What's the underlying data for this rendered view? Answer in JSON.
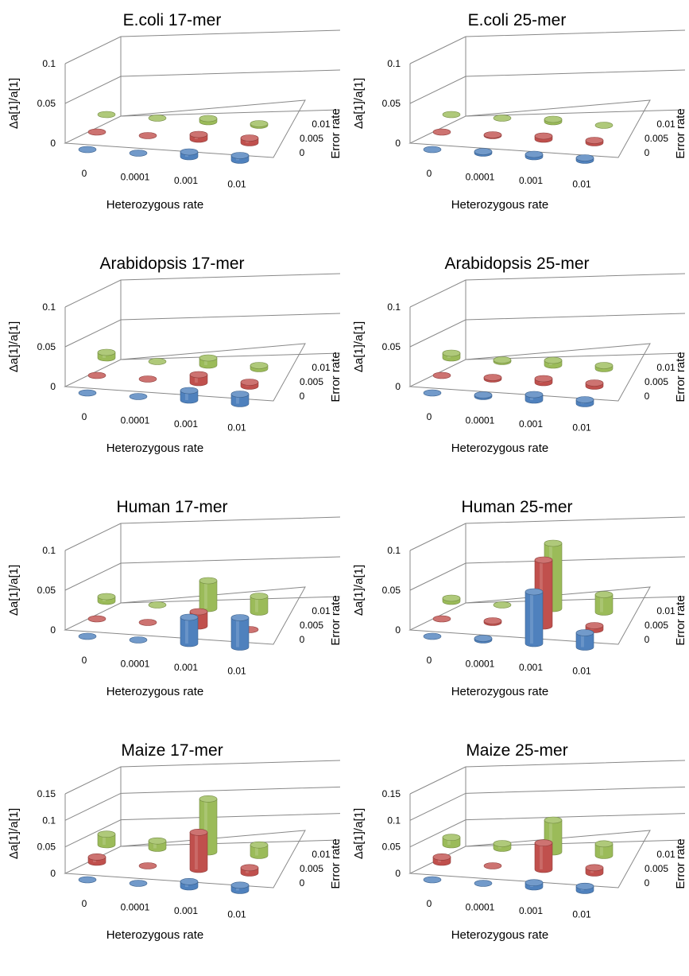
{
  "chart_data": [
    {
      "type": "bar3d",
      "title": "E.coli 17-mer",
      "xlabel": "Heterozygous rate",
      "ylabel": "Δa[1]/a[1]",
      "zlabel": "Error rate",
      "categories": [
        "0",
        "0.0001",
        "0.001",
        "0.01"
      ],
      "depth_categories": [
        "0",
        "0.005",
        "0.01"
      ],
      "y_ticks": [
        "0",
        "0.05",
        "0.1"
      ],
      "ylim": [
        0,
        0.1
      ],
      "series": [
        {
          "depth": "0",
          "color": "#4f81bd",
          "values": [
            0.0,
            0.0,
            0.006,
            0.006
          ]
        },
        {
          "depth": "0.005",
          "color": "#c0504d",
          "values": [
            0.0,
            0.0,
            0.006,
            0.006
          ]
        },
        {
          "depth": "0.01",
          "color": "#9bbb59",
          "values": [
            0.0,
            0.0,
            0.004,
            0.002
          ]
        }
      ]
    },
    {
      "type": "bar3d",
      "title": "E.coli 25-mer",
      "xlabel": "Heterozygous rate",
      "ylabel": "Δa[1]/a[1]",
      "zlabel": "Error rate",
      "categories": [
        "0",
        "0.0001",
        "0.001",
        "0.01"
      ],
      "depth_categories": [
        "0",
        "0.005",
        "0.01"
      ],
      "y_ticks": [
        "0",
        "0.05",
        "0.1"
      ],
      "ylim": [
        0,
        0.1
      ],
      "series": [
        {
          "depth": "0",
          "color": "#4f81bd",
          "values": [
            0.0,
            0.002,
            0.003,
            0.003
          ]
        },
        {
          "depth": "0.005",
          "color": "#c0504d",
          "values": [
            0.0,
            0.001,
            0.004,
            0.003
          ]
        },
        {
          "depth": "0.01",
          "color": "#9bbb59",
          "values": [
            0.0,
            0.0,
            0.003,
            0.0
          ]
        }
      ]
    },
    {
      "type": "bar3d",
      "title": "Arabidopsis 17-mer",
      "xlabel": "Heterozygous rate",
      "ylabel": "Δa[1]/a[1]",
      "zlabel": "Error rate",
      "categories": [
        "0",
        "0.0001",
        "0.001",
        "0.01"
      ],
      "depth_categories": [
        "0",
        "0.005",
        "0.01"
      ],
      "y_ticks": [
        "0",
        "0.05",
        "0.1"
      ],
      "ylim": [
        0,
        0.1
      ],
      "series": [
        {
          "depth": "0",
          "color": "#4f81bd",
          "values": [
            0.0,
            0.0,
            0.012,
            0.012
          ]
        },
        {
          "depth": "0.005",
          "color": "#c0504d",
          "values": [
            0.0,
            0.0,
            0.01,
            0.005
          ]
        },
        {
          "depth": "0.01",
          "color": "#9bbb59",
          "values": [
            0.007,
            0.0,
            0.009,
            0.004
          ]
        }
      ]
    },
    {
      "type": "bar3d",
      "title": "Arabidopsis 25-mer",
      "xlabel": "Heterozygous rate",
      "ylabel": "Δa[1]/a[1]",
      "zlabel": "Error rate",
      "categories": [
        "0",
        "0.0001",
        "0.001",
        "0.01"
      ],
      "depth_categories": [
        "0",
        "0.005",
        "0.01"
      ],
      "y_ticks": [
        "0",
        "0.05",
        "0.1"
      ],
      "ylim": [
        0,
        0.1
      ],
      "series": [
        {
          "depth": "0",
          "color": "#4f81bd",
          "values": [
            0.0,
            0.002,
            0.007,
            0.005
          ]
        },
        {
          "depth": "0.005",
          "color": "#c0504d",
          "values": [
            0.0,
            0.002,
            0.005,
            0.004
          ]
        },
        {
          "depth": "0.01",
          "color": "#9bbb59",
          "values": [
            0.006,
            0.002,
            0.006,
            0.004
          ]
        }
      ]
    },
    {
      "type": "bar3d",
      "title": "Human 17-mer",
      "xlabel": "Heterozygous rate",
      "ylabel": "Δa[1]/a[1]",
      "zlabel": "Error rate",
      "categories": [
        "0",
        "0.0001",
        "0.001",
        "0.01"
      ],
      "depth_categories": [
        "0",
        "0.005",
        "0.01"
      ],
      "y_ticks": [
        "0",
        "0.05",
        "0.1"
      ],
      "ylim": [
        0,
        0.1
      ],
      "series": [
        {
          "depth": "0",
          "color": "#4f81bd",
          "values": [
            0.0,
            0.0,
            0.033,
            0.037
          ]
        },
        {
          "depth": "0.005",
          "color": "#c0504d",
          "values": [
            0.0,
            0.0,
            0.018,
            0.0
          ]
        },
        {
          "depth": "0.01",
          "color": "#9bbb59",
          "values": [
            0.006,
            0.0,
            0.035,
            0.02
          ]
        }
      ]
    },
    {
      "type": "bar3d",
      "title": "Human 25-mer",
      "xlabel": "Heterozygous rate",
      "ylabel": "Δa[1]/a[1]",
      "zlabel": "Error rate",
      "categories": [
        "0",
        "0.0001",
        "0.001",
        "0.01"
      ],
      "depth_categories": [
        "0",
        "0.005",
        "0.01"
      ],
      "y_ticks": [
        "0",
        "0.05",
        "0.1"
      ],
      "ylim": [
        0,
        0.1
      ],
      "series": [
        {
          "depth": "0",
          "color": "#4f81bd",
          "values": [
            0.0,
            0.002,
            0.065,
            0.018
          ]
        },
        {
          "depth": "0.005",
          "color": "#c0504d",
          "values": [
            0.0,
            0.002,
            0.083,
            0.005
          ]
        },
        {
          "depth": "0.01",
          "color": "#9bbb59",
          "values": [
            0.004,
            0.0,
            0.082,
            0.022
          ]
        }
      ]
    },
    {
      "type": "bar3d",
      "title": "Maize 17-mer",
      "xlabel": "Heterozygous rate",
      "ylabel": "Δa[1]/a[1]",
      "zlabel": "Error rate",
      "categories": [
        "0",
        "0.0001",
        "0.001",
        "0.01"
      ],
      "depth_categories": [
        "0",
        "0.005",
        "0.01"
      ],
      "y_ticks": [
        "0",
        "0.05",
        "0.1",
        "0.15"
      ],
      "ylim": [
        0,
        0.15
      ],
      "series": [
        {
          "depth": "0",
          "color": "#4f81bd",
          "values": [
            0.0,
            0.0,
            0.01,
            0.01
          ]
        },
        {
          "depth": "0.005",
          "color": "#c0504d",
          "values": [
            0.01,
            0.0,
            0.07,
            0.01
          ]
        },
        {
          "depth": "0.01",
          "color": "#9bbb59",
          "values": [
            0.02,
            0.014,
            0.1,
            0.02
          ]
        }
      ]
    },
    {
      "type": "bar3d",
      "title": "Maize 25-mer",
      "xlabel": "Heterozygous rate",
      "ylabel": "Δa[1]/a[1]",
      "zlabel": "Error rate",
      "categories": [
        "0",
        "0.0001",
        "0.001",
        "0.01"
      ],
      "depth_categories": [
        "0",
        "0.005",
        "0.01"
      ],
      "y_ticks": [
        "0",
        "0.05",
        "0.1",
        "0.15"
      ],
      "ylim": [
        0,
        0.15
      ],
      "series": [
        {
          "depth": "0",
          "color": "#4f81bd",
          "values": [
            0.0,
            0.0,
            0.008,
            0.008
          ]
        },
        {
          "depth": "0.005",
          "color": "#c0504d",
          "values": [
            0.01,
            0.0,
            0.05,
            0.01
          ]
        },
        {
          "depth": "0.01",
          "color": "#9bbb59",
          "values": [
            0.014,
            0.009,
            0.06,
            0.022
          ]
        }
      ]
    }
  ]
}
